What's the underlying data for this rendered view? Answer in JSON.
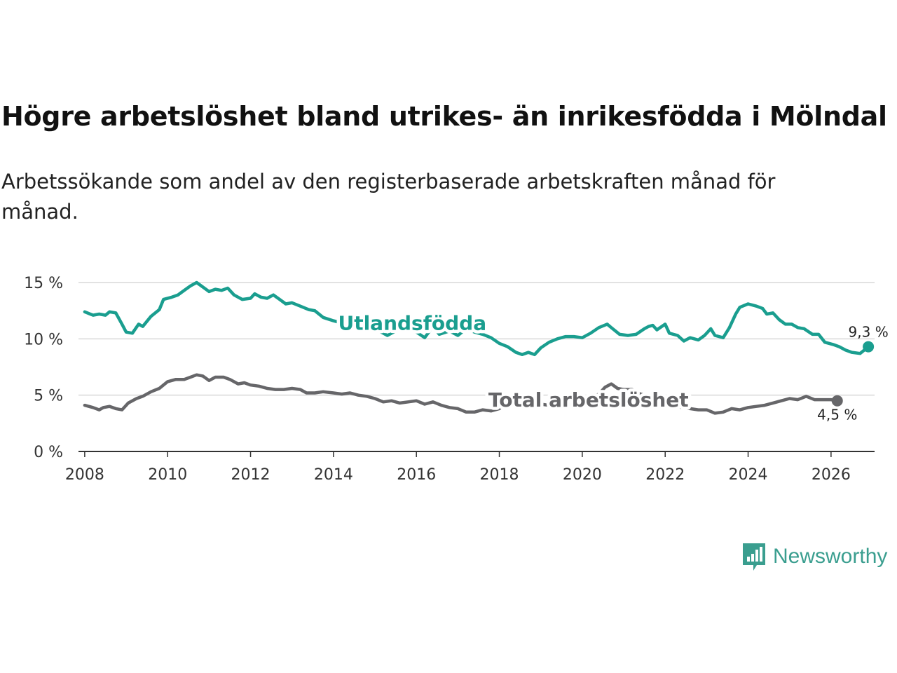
{
  "header": {
    "title": "Högre arbetslöshet bland utrikes- än inrikesfödda i Mölndal",
    "subtitle": "Arbetssökande som andel av den registerbaserade arbetskraften månad för månad."
  },
  "brand": {
    "name": "Newsworthy",
    "color": "#3a9e8f",
    "icon": "newsworthy-logo-icon"
  },
  "chart_data": {
    "type": "line",
    "title": "Högre arbetslöshet bland utrikes- än inrikesfödda i Mölndal",
    "xlabel": "",
    "ylabel": "",
    "xlim": [
      2007.85,
      2027.05
    ],
    "ylim": [
      0,
      15
    ],
    "x_ticks": [
      2008,
      2010,
      2012,
      2014,
      2016,
      2018,
      2020,
      2022,
      2024,
      2026
    ],
    "y_ticks": [
      {
        "value": 0,
        "label": "0 %"
      },
      {
        "value": 5,
        "label": "5 %"
      },
      {
        "value": 10,
        "label": "10 %"
      },
      {
        "value": 15,
        "label": "15 %"
      }
    ],
    "grid": true,
    "series": [
      {
        "name": "Utlandsfödda",
        "color": "#1a9e8f",
        "end_label": "9,3 %",
        "points": [
          [
            2008.0,
            12.4
          ],
          [
            2008.2,
            12.1
          ],
          [
            2008.35,
            12.2
          ],
          [
            2008.5,
            12.1
          ],
          [
            2008.6,
            12.4
          ],
          [
            2008.75,
            12.3
          ],
          [
            2008.9,
            11.3
          ],
          [
            2009.0,
            10.6
          ],
          [
            2009.15,
            10.5
          ],
          [
            2009.3,
            11.3
          ],
          [
            2009.4,
            11.1
          ],
          [
            2009.6,
            12.0
          ],
          [
            2009.8,
            12.6
          ],
          [
            2009.9,
            13.5
          ],
          [
            2010.1,
            13.7
          ],
          [
            2010.25,
            13.9
          ],
          [
            2010.4,
            14.3
          ],
          [
            2010.55,
            14.7
          ],
          [
            2010.7,
            15.0
          ],
          [
            2010.85,
            14.6
          ],
          [
            2011.0,
            14.2
          ],
          [
            2011.15,
            14.4
          ],
          [
            2011.3,
            14.3
          ],
          [
            2011.45,
            14.5
          ],
          [
            2011.6,
            13.9
          ],
          [
            2011.8,
            13.5
          ],
          [
            2012.0,
            13.6
          ],
          [
            2012.1,
            14.0
          ],
          [
            2012.25,
            13.7
          ],
          [
            2012.4,
            13.6
          ],
          [
            2012.55,
            13.9
          ],
          [
            2012.7,
            13.5
          ],
          [
            2012.85,
            13.1
          ],
          [
            2013.0,
            13.2
          ],
          [
            2013.2,
            12.9
          ],
          [
            2013.4,
            12.6
          ],
          [
            2013.55,
            12.5
          ],
          [
            2013.75,
            11.9
          ],
          [
            2014.0,
            11.6
          ],
          [
            2014.2,
            11.4
          ],
          [
            2014.4,
            11.7
          ],
          [
            2014.6,
            11.8
          ],
          [
            2014.8,
            11.2
          ],
          [
            2015.0,
            10.9
          ],
          [
            2015.15,
            10.6
          ],
          [
            2015.3,
            10.3
          ],
          [
            2015.45,
            10.6
          ],
          [
            2015.6,
            11.0
          ],
          [
            2015.8,
            10.8
          ],
          [
            2016.0,
            10.6
          ],
          [
            2016.2,
            10.1
          ],
          [
            2016.4,
            11.1
          ],
          [
            2016.55,
            10.4
          ],
          [
            2016.8,
            10.7
          ],
          [
            2017.0,
            10.3
          ],
          [
            2017.2,
            10.9
          ],
          [
            2017.4,
            10.6
          ],
          [
            2017.6,
            10.4
          ],
          [
            2017.8,
            10.1
          ],
          [
            2018.0,
            9.6
          ],
          [
            2018.2,
            9.3
          ],
          [
            2018.4,
            8.8
          ],
          [
            2018.55,
            8.6
          ],
          [
            2018.7,
            8.8
          ],
          [
            2018.85,
            8.6
          ],
          [
            2019.0,
            9.2
          ],
          [
            2019.2,
            9.7
          ],
          [
            2019.4,
            10.0
          ],
          [
            2019.6,
            10.2
          ],
          [
            2019.8,
            10.2
          ],
          [
            2020.0,
            10.1
          ],
          [
            2020.2,
            10.5
          ],
          [
            2020.4,
            11.0
          ],
          [
            2020.6,
            11.3
          ],
          [
            2020.7,
            11.0
          ],
          [
            2020.9,
            10.4
          ],
          [
            2021.1,
            10.3
          ],
          [
            2021.3,
            10.4
          ],
          [
            2021.5,
            10.9
          ],
          [
            2021.6,
            11.1
          ],
          [
            2021.7,
            11.2
          ],
          [
            2021.8,
            10.8
          ],
          [
            2022.0,
            11.3
          ],
          [
            2022.1,
            10.5
          ],
          [
            2022.3,
            10.3
          ],
          [
            2022.45,
            9.8
          ],
          [
            2022.6,
            10.1
          ],
          [
            2022.8,
            9.9
          ],
          [
            2022.95,
            10.3
          ],
          [
            2023.1,
            10.9
          ],
          [
            2023.2,
            10.3
          ],
          [
            2023.4,
            10.1
          ],
          [
            2023.55,
            11.0
          ],
          [
            2023.7,
            12.2
          ],
          [
            2023.8,
            12.8
          ],
          [
            2024.0,
            13.1
          ],
          [
            2024.2,
            12.9
          ],
          [
            2024.35,
            12.7
          ],
          [
            2024.45,
            12.2
          ],
          [
            2024.6,
            12.3
          ],
          [
            2024.75,
            11.7
          ],
          [
            2024.9,
            11.3
          ],
          [
            2025.05,
            11.3
          ],
          [
            2025.2,
            11.0
          ],
          [
            2025.35,
            10.9
          ],
          [
            2025.55,
            10.4
          ],
          [
            2025.7,
            10.4
          ],
          [
            2025.85,
            9.7
          ],
          [
            2026.05,
            9.5
          ],
          [
            2026.2,
            9.3
          ],
          [
            2026.35,
            9.0
          ],
          [
            2026.5,
            8.8
          ],
          [
            2026.7,
            8.7
          ],
          [
            2026.9,
            9.3
          ]
        ]
      },
      {
        "name": "Total arbetslöshet",
        "color": "#666669",
        "end_label": "4,5 %",
        "points": [
          [
            2008.0,
            4.1
          ],
          [
            2008.2,
            3.9
          ],
          [
            2008.35,
            3.7
          ],
          [
            2008.45,
            3.9
          ],
          [
            2008.6,
            4.0
          ],
          [
            2008.75,
            3.8
          ],
          [
            2008.9,
            3.7
          ],
          [
            2009.05,
            4.3
          ],
          [
            2009.25,
            4.7
          ],
          [
            2009.4,
            4.9
          ],
          [
            2009.6,
            5.3
          ],
          [
            2009.8,
            5.6
          ],
          [
            2010.0,
            6.2
          ],
          [
            2010.2,
            6.4
          ],
          [
            2010.4,
            6.4
          ],
          [
            2010.55,
            6.6
          ],
          [
            2010.7,
            6.8
          ],
          [
            2010.85,
            6.7
          ],
          [
            2011.0,
            6.3
          ],
          [
            2011.15,
            6.6
          ],
          [
            2011.35,
            6.6
          ],
          [
            2011.5,
            6.4
          ],
          [
            2011.7,
            6.0
          ],
          [
            2011.85,
            6.1
          ],
          [
            2012.0,
            5.9
          ],
          [
            2012.2,
            5.8
          ],
          [
            2012.4,
            5.6
          ],
          [
            2012.6,
            5.5
          ],
          [
            2012.8,
            5.5
          ],
          [
            2013.0,
            5.6
          ],
          [
            2013.2,
            5.5
          ],
          [
            2013.35,
            5.2
          ],
          [
            2013.55,
            5.2
          ],
          [
            2013.75,
            5.3
          ],
          [
            2014.0,
            5.2
          ],
          [
            2014.2,
            5.1
          ],
          [
            2014.4,
            5.2
          ],
          [
            2014.6,
            5.0
          ],
          [
            2014.8,
            4.9
          ],
          [
            2015.0,
            4.7
          ],
          [
            2015.2,
            4.4
          ],
          [
            2015.4,
            4.5
          ],
          [
            2015.6,
            4.3
          ],
          [
            2015.8,
            4.4
          ],
          [
            2016.0,
            4.5
          ],
          [
            2016.2,
            4.2
          ],
          [
            2016.4,
            4.4
          ],
          [
            2016.6,
            4.1
          ],
          [
            2016.8,
            3.9
          ],
          [
            2017.0,
            3.8
          ],
          [
            2017.2,
            3.5
          ],
          [
            2017.4,
            3.5
          ],
          [
            2017.6,
            3.7
          ],
          [
            2017.8,
            3.6
          ],
          [
            2018.0,
            3.8
          ],
          [
            2018.2,
            4.3
          ],
          [
            2018.4,
            4.3
          ],
          [
            2018.6,
            4.2
          ],
          [
            2018.8,
            4.2
          ],
          [
            2019.0,
            4.2
          ],
          [
            2019.2,
            4.1
          ],
          [
            2019.4,
            4.2
          ],
          [
            2019.6,
            4.2
          ],
          [
            2019.8,
            4.1
          ],
          [
            2020.0,
            4.2
          ],
          [
            2020.2,
            4.6
          ],
          [
            2020.4,
            5.1
          ],
          [
            2020.55,
            5.7
          ],
          [
            2020.7,
            6.0
          ],
          [
            2020.85,
            5.6
          ],
          [
            2021.0,
            5.5
          ],
          [
            2021.2,
            5.5
          ],
          [
            2021.4,
            5.1
          ],
          [
            2021.6,
            4.9
          ],
          [
            2021.8,
            4.6
          ],
          [
            2022.0,
            4.3
          ],
          [
            2022.2,
            4.1
          ],
          [
            2022.4,
            3.9
          ],
          [
            2022.6,
            3.8
          ],
          [
            2022.8,
            3.7
          ],
          [
            2023.0,
            3.7
          ],
          [
            2023.2,
            3.4
          ],
          [
            2023.4,
            3.5
          ],
          [
            2023.6,
            3.8
          ],
          [
            2023.8,
            3.7
          ],
          [
            2024.0,
            3.9
          ],
          [
            2024.2,
            4.0
          ],
          [
            2024.4,
            4.1
          ],
          [
            2024.6,
            4.3
          ],
          [
            2024.8,
            4.5
          ],
          [
            2025.0,
            4.7
          ],
          [
            2025.2,
            4.6
          ],
          [
            2025.4,
            4.9
          ],
          [
            2025.6,
            4.6
          ],
          [
            2025.8,
            4.6
          ],
          [
            2026.0,
            4.6
          ],
          [
            2026.15,
            4.5
          ]
        ]
      }
    ],
    "series_labels": [
      {
        "text": "Utlandsfödda",
        "series": "Utlandsfödda",
        "x": 2015.9,
        "y": 10.8
      },
      {
        "text": "Total arbetslöshet",
        "series": "Total arbetslöshet",
        "x": 2020.15,
        "y": 3.98
      }
    ]
  }
}
